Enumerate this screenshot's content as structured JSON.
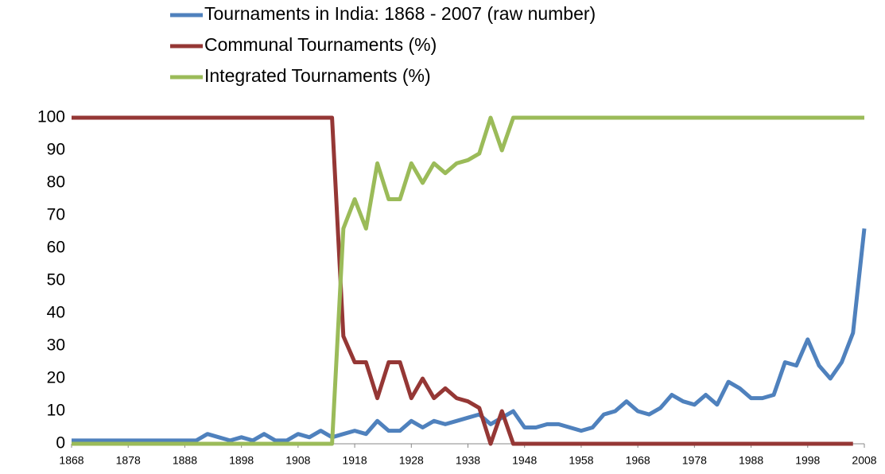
{
  "chart_data": {
    "type": "line",
    "x": [
      1868,
      1870,
      1872,
      1874,
      1876,
      1878,
      1880,
      1882,
      1884,
      1886,
      1888,
      1890,
      1892,
      1894,
      1896,
      1898,
      1900,
      1902,
      1904,
      1906,
      1908,
      1910,
      1912,
      1914,
      1916,
      1918,
      1920,
      1922,
      1924,
      1926,
      1928,
      1930,
      1932,
      1934,
      1936,
      1938,
      1940,
      1942,
      1944,
      1946,
      1948,
      1950,
      1952,
      1954,
      1956,
      1958,
      1960,
      1962,
      1964,
      1966,
      1968,
      1970,
      1972,
      1974,
      1976,
      1978,
      1980,
      1982,
      1984,
      1986,
      1988,
      1990,
      1992,
      1994,
      1996,
      1998,
      2000,
      2002,
      2004,
      2006,
      2008
    ],
    "series": [
      {
        "name": "Tournaments in India:  1868 - 2007 (raw number)",
        "color": "#4f81bd",
        "values": [
          1,
          1,
          1,
          1,
          1,
          1,
          1,
          1,
          1,
          1,
          1,
          1,
          3,
          2,
          1,
          2,
          1,
          3,
          1,
          1,
          3,
          2,
          4,
          2,
          3,
          4,
          3,
          7,
          4,
          4,
          7,
          5,
          7,
          6,
          7,
          8,
          9,
          6,
          8,
          10,
          5,
          5,
          6,
          6,
          5,
          4,
          5,
          9,
          10,
          13,
          10,
          9,
          11,
          15,
          13,
          12,
          15,
          12,
          19,
          17,
          14,
          14,
          15,
          25,
          24,
          32,
          24,
          20,
          25,
          34,
          66
        ]
      },
      {
        "name": "Communal Tournaments (%)",
        "color": "#953735",
        "values": [
          100,
          100,
          100,
          100,
          100,
          100,
          100,
          100,
          100,
          100,
          100,
          100,
          100,
          100,
          100,
          100,
          100,
          100,
          100,
          100,
          100,
          100,
          100,
          100,
          33,
          25,
          25,
          14,
          25,
          25,
          14,
          20,
          14,
          17,
          14,
          13,
          11,
          0,
          10,
          0,
          0,
          0,
          0,
          0,
          0,
          0,
          0,
          0,
          0,
          0,
          0,
          0,
          0,
          0,
          0,
          0,
          0,
          0,
          0,
          0,
          0,
          0,
          0,
          0,
          0,
          0,
          0,
          0,
          0,
          0,
          null
        ]
      },
      {
        "name": "Integrated Tournaments (%)",
        "color": "#9bbb59",
        "values": [
          0,
          0,
          0,
          0,
          0,
          0,
          0,
          0,
          0,
          0,
          0,
          0,
          0,
          0,
          0,
          0,
          0,
          0,
          0,
          0,
          0,
          0,
          0,
          0,
          66,
          75,
          66,
          86,
          75,
          75,
          86,
          80,
          86,
          83,
          86,
          87,
          89,
          100,
          90,
          100,
          100,
          100,
          100,
          100,
          100,
          100,
          100,
          100,
          100,
          100,
          100,
          100,
          100,
          100,
          100,
          100,
          100,
          100,
          100,
          100,
          100,
          100,
          100,
          100,
          100,
          100,
          100,
          100,
          100,
          100,
          100
        ]
      }
    ],
    "xlim": [
      1868,
      2008
    ],
    "xticks": [
      1868,
      1878,
      1888,
      1898,
      1908,
      1918,
      1928,
      1938,
      1948,
      1958,
      1968,
      1978,
      1988,
      1998,
      2008
    ],
    "ylim": [
      0,
      100
    ],
    "yticks": [
      0,
      10,
      20,
      30,
      40,
      50,
      60,
      70,
      80,
      90,
      100
    ],
    "grid": false,
    "legend": "top"
  }
}
